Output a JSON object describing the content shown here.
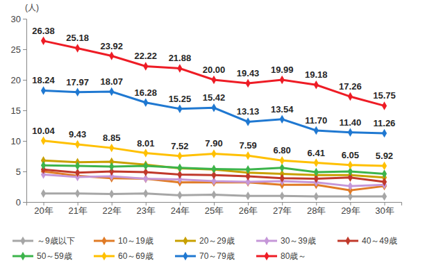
{
  "chart_data": {
    "type": "line",
    "ylabel": "(人)",
    "categories": [
      "20年",
      "21年",
      "22年",
      "23年",
      "24年",
      "25年",
      "26年",
      "27年",
      "28年",
      "29年",
      "30年"
    ],
    "ylim": [
      0,
      30
    ],
    "yticks": [
      0,
      5,
      10,
      15,
      20,
      25,
      30
    ],
    "grid": false,
    "legend": "bottom",
    "series": [
      {
        "name": "～9歳以下",
        "color": "#a6a6a6",
        "marker": "diamond",
        "values": [
          1.4,
          1.4,
          1.3,
          1.4,
          1.1,
          1.2,
          1.0,
          1.0,
          0.9,
          0.9,
          0.9
        ]
      },
      {
        "name": "10～19歳",
        "color": "#e07b26",
        "marker": "diamond",
        "values": [
          5.0,
          4.3,
          3.9,
          3.8,
          3.2,
          3.2,
          3.2,
          2.8,
          2.8,
          1.9,
          2.6
        ]
      },
      {
        "name": "20～29歳",
        "color": "#c8a000",
        "marker": "diamond",
        "values": [
          6.8,
          6.5,
          6.6,
          6.1,
          5.5,
          5.3,
          4.8,
          4.6,
          4.4,
          4.4,
          4.0
        ]
      },
      {
        "name": "30～39歳",
        "color": "#c597d8",
        "marker": "diamond",
        "values": [
          4.5,
          4.1,
          4.2,
          3.8,
          3.7,
          3.4,
          3.3,
          3.4,
          3.2,
          2.6,
          2.8
        ]
      },
      {
        "name": "40～49歳",
        "color": "#c0392b",
        "marker": "diamond",
        "values": [
          5.3,
          4.8,
          5.0,
          4.9,
          4.5,
          4.4,
          4.2,
          3.9,
          3.8,
          4.0,
          3.3
        ]
      },
      {
        "name": "50～59歳",
        "color": "#3cb44b",
        "marker": "diamond",
        "values": [
          6.0,
          5.9,
          5.8,
          5.9,
          5.6,
          5.4,
          5.3,
          5.6,
          4.9,
          5.0,
          4.6
        ]
      },
      {
        "name": "60～69歳",
        "color": "#ffc000",
        "marker": "diamond",
        "data_labels": true,
        "values": [
          10.04,
          9.43,
          8.85,
          8.01,
          7.52,
          7.9,
          7.59,
          6.8,
          6.41,
          6.05,
          5.92
        ],
        "value_labels": [
          "10.04",
          "9.43",
          "8.85",
          "8.01",
          "7.52",
          "7.90",
          "7.59",
          "6.80",
          "6.41",
          "6.05",
          "5.92"
        ]
      },
      {
        "name": "70～79歳",
        "color": "#1f78d1",
        "marker": "diamond",
        "data_labels": true,
        "values": [
          18.24,
          17.97,
          18.07,
          16.28,
          15.25,
          15.42,
          13.13,
          13.54,
          11.7,
          11.4,
          11.26
        ],
        "value_labels": [
          "18.24",
          "17.97",
          "18.07",
          "16.28",
          "15.25",
          "15.42",
          "13.13",
          "13.54",
          "11.70",
          "11.40",
          "11.26"
        ]
      },
      {
        "name": "80歳～",
        "color": "#ee1c25",
        "marker": "diamond",
        "data_labels": true,
        "values": [
          26.38,
          25.18,
          23.92,
          22.22,
          21.88,
          20.0,
          19.43,
          19.99,
          19.18,
          17.26,
          15.75
        ],
        "value_labels": [
          "26.38",
          "25.18",
          "23.92",
          "22.22",
          "21.88",
          "20.00",
          "19.43",
          "19.99",
          "19.18",
          "17.26",
          "15.75"
        ]
      }
    ]
  }
}
